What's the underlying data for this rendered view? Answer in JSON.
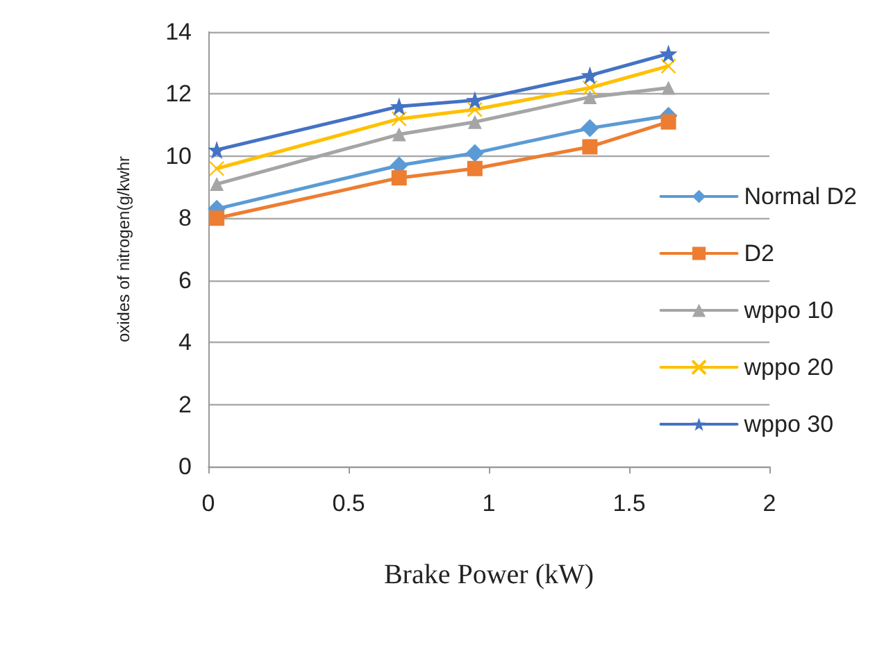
{
  "chart_data": {
    "type": "line",
    "xlabel": "Brake Power (kW)",
    "ylabel": "oxides of nitrogen(g/kwhr",
    "x": [
      0.03,
      0.68,
      0.95,
      1.36,
      1.64
    ],
    "series": [
      {
        "name": "Normal D2",
        "color": "#5b9bd5",
        "marker": "diamond",
        "values": [
          8.3,
          9.7,
          10.1,
          10.9,
          11.3
        ]
      },
      {
        "name": "D2",
        "color": "#ed7d31",
        "marker": "square",
        "values": [
          8.0,
          9.3,
          9.6,
          10.3,
          11.1
        ]
      },
      {
        "name": "wppo 10",
        "color": "#a5a5a5",
        "marker": "triangle",
        "values": [
          9.1,
          10.7,
          11.1,
          11.9,
          12.2
        ]
      },
      {
        "name": "wppo 20",
        "color": "#ffc000",
        "marker": "cross",
        "values": [
          9.6,
          11.2,
          11.5,
          12.2,
          12.9
        ]
      },
      {
        "name": "wppo 30",
        "color": "#4472c4",
        "marker": "star",
        "values": [
          10.2,
          11.6,
          11.8,
          12.6,
          13.3
        ]
      }
    ],
    "xlim": [
      0,
      2
    ],
    "xticks": [
      0,
      0.5,
      1,
      1.5,
      2
    ],
    "ylim": [
      0,
      14
    ],
    "yticks": [
      0,
      2,
      4,
      6,
      8,
      10,
      12,
      14
    ],
    "grid": "y",
    "legend": "right",
    "line_style": "solid"
  }
}
